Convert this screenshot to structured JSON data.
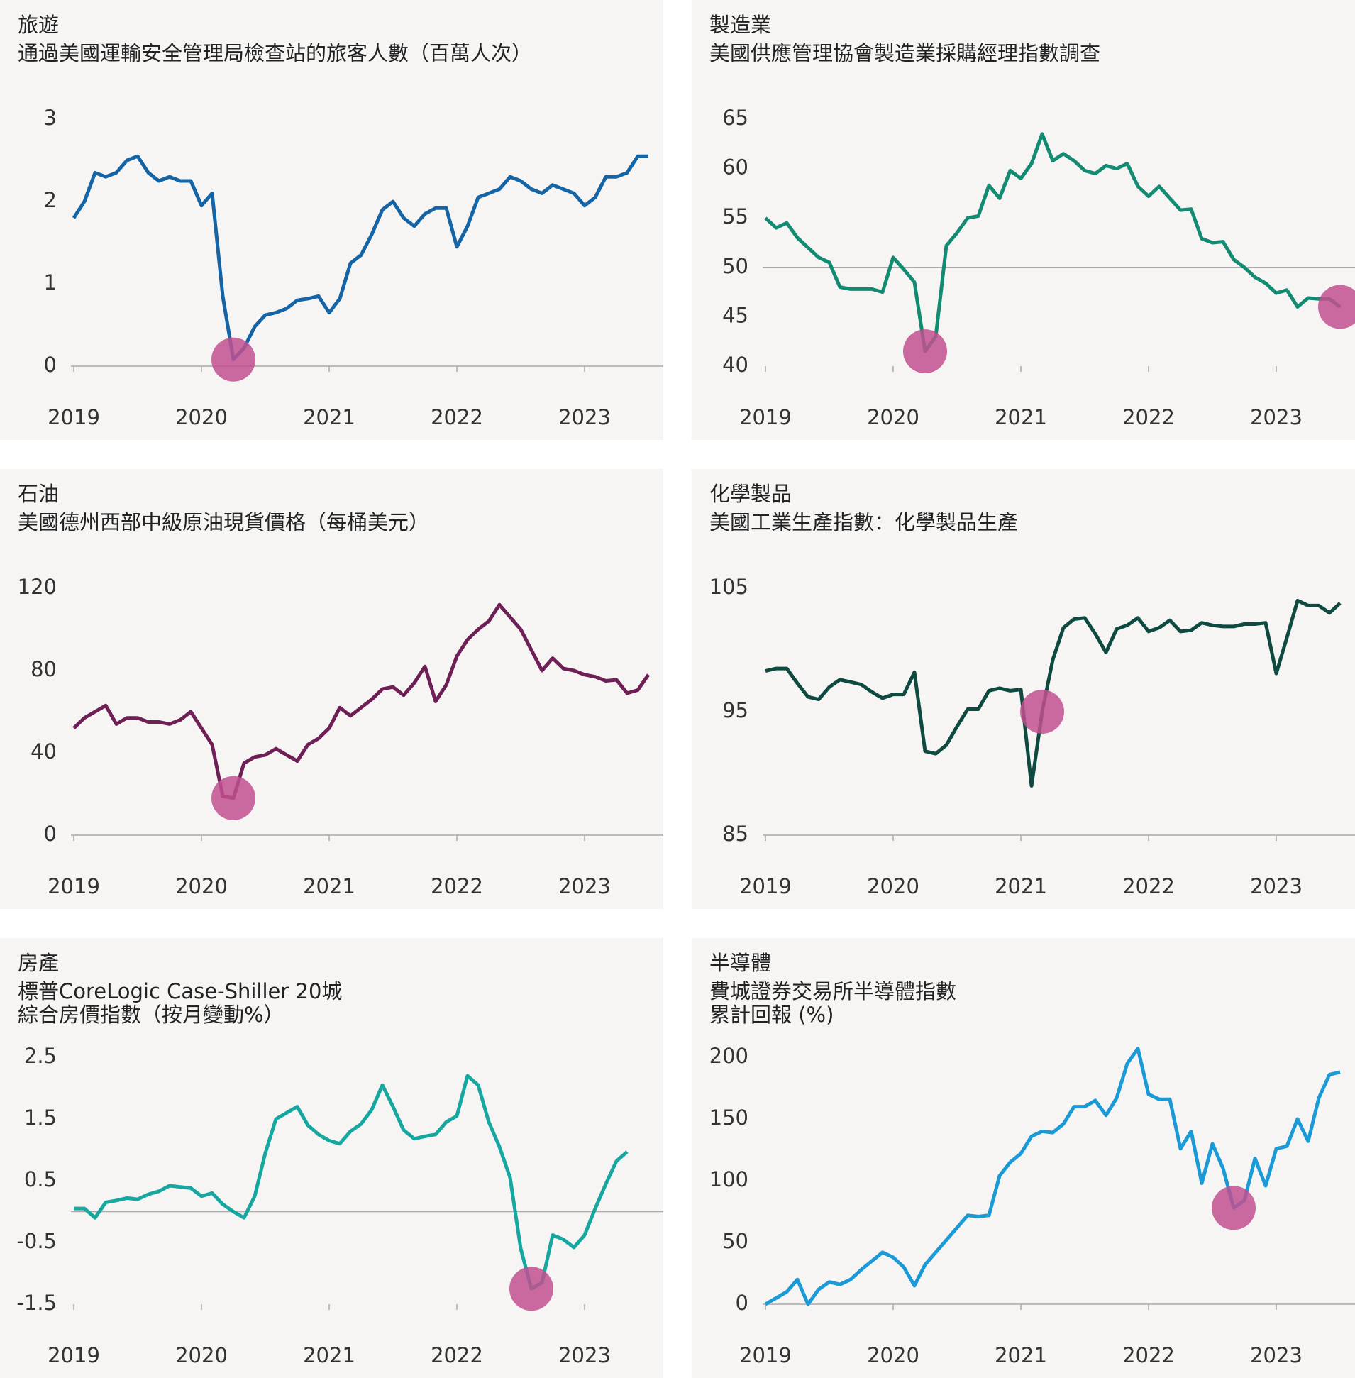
{
  "chart_data": [
    {
      "type": "line",
      "title": "旅遊",
      "subtitle": [
        "通過美國運輸安全管理局檢查站的旅客人數（百萬人次）"
      ],
      "color": "#1565a6",
      "values": [
        1.8,
        2.0,
        2.35,
        2.3,
        2.35,
        2.5,
        2.55,
        2.35,
        2.25,
        2.3,
        2.25,
        2.25,
        1.95,
        2.1,
        0.85,
        0.08,
        0.22,
        0.48,
        0.62,
        0.65,
        0.7,
        0.8,
        0.82,
        0.85,
        0.65,
        0.82,
        1.25,
        1.35,
        1.6,
        1.9,
        2.0,
        1.8,
        1.7,
        1.85,
        1.92,
        1.92,
        1.45,
        1.7,
        2.05,
        2.1,
        2.15,
        2.3,
        2.25,
        2.15,
        2.1,
        2.2,
        2.15,
        2.1,
        1.95,
        2.05,
        2.3,
        2.3,
        2.35,
        2.55,
        2.55
      ],
      "xlim": [
        0,
        54
      ],
      "xticks": [
        {
          "value": 0,
          "label": "2019"
        },
        {
          "value": 12,
          "label": "2020"
        },
        {
          "value": 24,
          "label": "2021"
        },
        {
          "value": 36,
          "label": "2022"
        },
        {
          "value": 48,
          "label": "2023"
        }
      ],
      "ylim": [
        0,
        3
      ],
      "yticks": [
        0,
        1,
        2,
        3
      ],
      "highlights": [
        15
      ]
    },
    {
      "type": "line",
      "title": "製造業",
      "subtitle": [
        "美國供應管理協會製造業採購經理指數調查"
      ],
      "color": "#138a72",
      "values": [
        55,
        54,
        54.5,
        53,
        52,
        51,
        50.5,
        48,
        47.8,
        47.8,
        47.8,
        47.5,
        51,
        49.8,
        48.5,
        41.5,
        43,
        52.2,
        53.5,
        55,
        55.2,
        58.3,
        57,
        59.8,
        59,
        60.5,
        63.5,
        60.8,
        61.5,
        60.8,
        59.8,
        59.5,
        60.3,
        60,
        60.5,
        58.2,
        57.2,
        58.2,
        57,
        55.8,
        55.9,
        52.9,
        52.5,
        52.6,
        50.8,
        50,
        49,
        48.4,
        47.4,
        47.7,
        46,
        46.9,
        46.8,
        46.8,
        46
      ],
      "xlim": [
        0,
        54
      ],
      "xticks": [
        {
          "value": 0,
          "label": "2019"
        },
        {
          "value": 12,
          "label": "2020"
        },
        {
          "value": 24,
          "label": "2021"
        },
        {
          "value": 36,
          "label": "2022"
        },
        {
          "value": 48,
          "label": "2023"
        }
      ],
      "ylim": [
        40,
        65
      ],
      "yticks": [
        40,
        45,
        50,
        55,
        60,
        65
      ],
      "baseline": 50,
      "highlights": [
        15,
        54
      ]
    },
    {
      "type": "line",
      "title": "石油",
      "subtitle": [
        "美國德州西部中級原油現貨價格（每桶美元）"
      ],
      "color": "#6e1f55",
      "values": [
        52,
        57,
        60,
        63,
        54,
        57,
        57,
        55,
        55,
        54,
        56,
        60,
        52,
        44,
        19,
        18,
        35,
        38,
        39,
        42,
        39,
        36,
        44,
        47,
        52,
        62,
        58,
        62,
        66,
        71,
        72,
        68,
        74,
        82,
        65,
        73,
        87,
        95,
        100,
        104,
        112,
        106,
        100,
        90,
        80,
        86,
        81,
        80,
        78,
        77,
        75,
        75.5,
        69,
        70.5,
        78
      ],
      "xlim": [
        0,
        54
      ],
      "xticks": [
        {
          "value": 0,
          "label": "2019"
        },
        {
          "value": 12,
          "label": "2020"
        },
        {
          "value": 24,
          "label": "2021"
        },
        {
          "value": 36,
          "label": "2022"
        },
        {
          "value": 48,
          "label": "2023"
        }
      ],
      "ylim": [
        0,
        120
      ],
      "yticks": [
        0,
        40,
        80,
        120
      ],
      "highlights": [
        15
      ]
    },
    {
      "type": "line",
      "title": "化學製品",
      "subtitle": [
        "美國工業生產指數：化學製品生產"
      ],
      "color": "#0f4a40",
      "values": [
        98.3,
        98.5,
        98.5,
        97.3,
        96.2,
        96,
        97,
        97.6,
        97.4,
        97.2,
        96.6,
        96.1,
        96.4,
        96.4,
        98.2,
        91.8,
        91.6,
        92.3,
        93.8,
        95.2,
        95.2,
        96.7,
        96.9,
        96.7,
        96.8,
        89,
        95,
        99.2,
        101.8,
        102.5,
        102.6,
        101.3,
        99.8,
        101.7,
        102,
        102.6,
        101.5,
        101.8,
        102.4,
        101.5,
        101.6,
        102.2,
        102,
        101.9,
        101.9,
        102.1,
        102.1,
        102.2,
        98.1,
        101,
        104,
        103.6,
        103.6,
        103,
        103.8
      ],
      "xlim": [
        0,
        54
      ],
      "xticks": [
        {
          "value": 0,
          "label": "2019"
        },
        {
          "value": 12,
          "label": "2020"
        },
        {
          "value": 24,
          "label": "2021"
        },
        {
          "value": 36,
          "label": "2022"
        },
        {
          "value": 48,
          "label": "2023"
        }
      ],
      "ylim": [
        85,
        105
      ],
      "yticks": [
        85,
        95,
        105
      ],
      "highlights": [
        26
      ]
    },
    {
      "type": "line",
      "title": "房產",
      "subtitle": [
        "標普CoreLogic Case-Shiller 20城",
        "綜合房價指數（按月變動%）"
      ],
      "color": "#16a8a0",
      "values": [
        0.05,
        0.05,
        -0.1,
        0.15,
        0.18,
        0.22,
        0.2,
        0.28,
        0.33,
        0.42,
        0.4,
        0.38,
        0.25,
        0.3,
        0.12,
        0,
        -0.1,
        0.25,
        0.95,
        1.5,
        1.6,
        1.7,
        1.4,
        1.25,
        1.15,
        1.1,
        1.3,
        1.42,
        1.65,
        2.05,
        1.7,
        1.32,
        1.18,
        1.22,
        1.25,
        1.45,
        1.55,
        2.2,
        2.05,
        1.45,
        1.05,
        0.55,
        -0.6,
        -1.25,
        -1.15,
        -0.38,
        -0.45,
        -0.58,
        -0.38,
        0.05,
        0.45,
        0.82,
        0.97
      ],
      "xlim": [
        0,
        54
      ],
      "xticks": [
        {
          "value": 0,
          "label": "2019"
        },
        {
          "value": 12,
          "label": "2020"
        },
        {
          "value": 24,
          "label": "2021"
        },
        {
          "value": 36,
          "label": "2022"
        },
        {
          "value": 48,
          "label": "2023"
        }
      ],
      "ylim": [
        -1.5,
        2.5
      ],
      "yticks": [
        -1.5,
        -0.5,
        0.5,
        1.5,
        2.5
      ],
      "highlights": [
        43
      ]
    },
    {
      "type": "line",
      "title": "半導體",
      "subtitle": [
        "費城證券交易所半導體指數",
        "累計回報 (%)"
      ],
      "color": "#1a9ad6",
      "values": [
        0,
        5,
        10,
        20,
        0,
        12,
        18,
        16,
        20,
        28,
        35,
        42,
        38,
        30,
        15,
        32,
        42,
        52,
        62,
        72,
        71,
        72,
        104,
        115,
        122,
        136,
        140,
        139,
        146,
        160,
        160,
        165,
        153,
        167,
        195,
        207,
        170,
        166,
        166,
        126,
        140,
        98,
        130,
        110,
        78,
        84,
        118,
        96,
        126,
        128,
        150,
        132,
        167,
        186,
        188
      ],
      "xlim": [
        0,
        54
      ],
      "xticks": [
        {
          "value": 0,
          "label": "2019"
        },
        {
          "value": 12,
          "label": "2020"
        },
        {
          "value": 24,
          "label": "2021"
        },
        {
          "value": 36,
          "label": "2022"
        },
        {
          "value": 48,
          "label": "2023"
        }
      ],
      "ylim": [
        0,
        200
      ],
      "yticks": [
        0,
        50,
        100,
        150,
        200
      ],
      "highlights": [
        44
      ]
    }
  ]
}
